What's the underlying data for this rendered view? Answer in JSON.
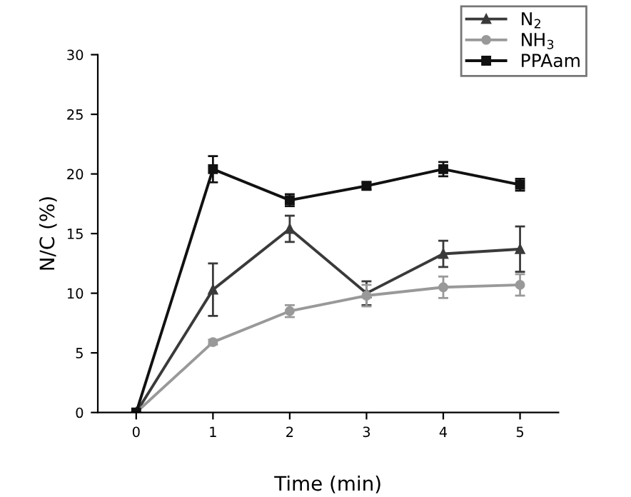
{
  "chart_data": {
    "type": "line",
    "xlabel": "Time (min)",
    "ylabel": "N/C (%)",
    "x": [
      0,
      1,
      2,
      3,
      4,
      5
    ],
    "xlim": [
      -0.5,
      5.5
    ],
    "xticks": [
      0,
      1,
      2,
      3,
      4,
      5
    ],
    "ylim": [
      0,
      30
    ],
    "yticks": [
      0,
      5,
      10,
      15,
      20,
      25,
      30
    ],
    "grid": false,
    "legend": "top right",
    "series": [
      {
        "name": "N$_{2}$",
        "color": "#3a3a3a",
        "marker": "triangle",
        "values": [
          0,
          10.3,
          15.4,
          10.0,
          13.3,
          13.7
        ],
        "errors": [
          null,
          2.2,
          1.1,
          1.0,
          1.1,
          1.9
        ]
      },
      {
        "name": "NH$_{3}$",
        "color": "#999999",
        "marker": "circle",
        "values": [
          0,
          5.9,
          8.5,
          9.8,
          10.5,
          10.7
        ],
        "errors": [
          null,
          0.2,
          0.5,
          0.9,
          0.9,
          0.9
        ]
      },
      {
        "name": "PPAam",
        "color": "#111111",
        "marker": "square",
        "values": [
          0,
          20.4,
          17.8,
          19.0,
          20.4,
          19.1
        ],
        "errors": [
          null,
          1.1,
          0.5,
          0.3,
          0.6,
          0.5
        ]
      }
    ]
  }
}
